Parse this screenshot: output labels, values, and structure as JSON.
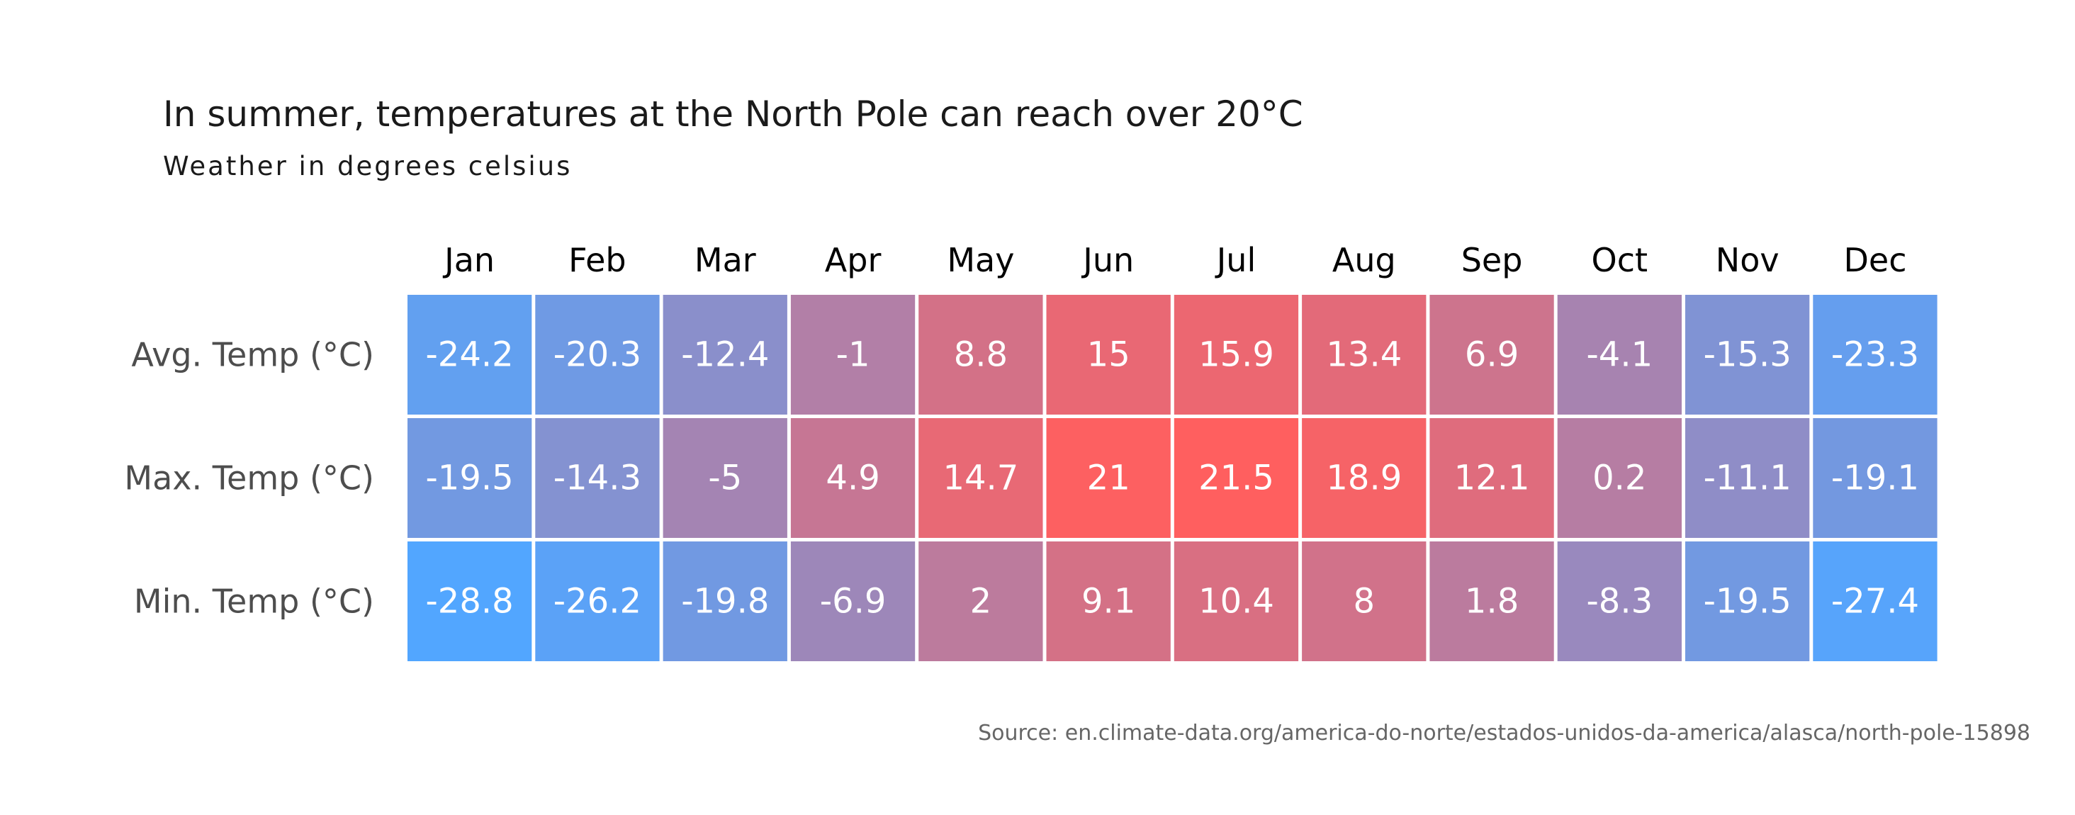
{
  "chart_data": {
    "type": "heatmap",
    "title": "In summer, temperatures at the North Pole can reach over 20°C",
    "subtitle": "Weather in degrees celsius",
    "source": "Source: en.climate-data.org/america-do-norte/estados-unidos-da-america/alasca/north-pole-15898",
    "columns": [
      "Jan",
      "Feb",
      "Mar",
      "Apr",
      "May",
      "Jun",
      "Jul",
      "Aug",
      "Sep",
      "Oct",
      "Nov",
      "Dec"
    ],
    "rows": [
      {
        "label": "Avg. Temp (°C)",
        "values": [
          -24.2,
          -20.3,
          -12.4,
          -1,
          8.8,
          15,
          15.9,
          13.4,
          6.9,
          -4.1,
          -15.3,
          -23.3
        ]
      },
      {
        "label": "Max. Temp (°C)",
        "values": [
          -19.5,
          -14.3,
          -5,
          4.9,
          14.7,
          21,
          21.5,
          18.9,
          12.1,
          0.2,
          -11.1,
          -19.1
        ]
      },
      {
        "label": "Min. Temp (°C)",
        "values": [
          -28.8,
          -26.2,
          -19.8,
          -6.9,
          2,
          9.1,
          10.4,
          8,
          1.8,
          -8.3,
          -19.5,
          -27.4
        ]
      }
    ],
    "color_scale": {
      "low_color": "#52a6ff",
      "high_color": "#ff5f5f",
      "domain": [
        -28.8,
        21.5
      ]
    },
    "colors": {
      "title": "#1a1a1a",
      "subtitle": "#1a1a1a",
      "column_labels": "#000000",
      "row_labels": "#4d4d4d",
      "cell_text": "#ffffff",
      "source": "#666666",
      "cell_border": "#ffffff"
    }
  }
}
